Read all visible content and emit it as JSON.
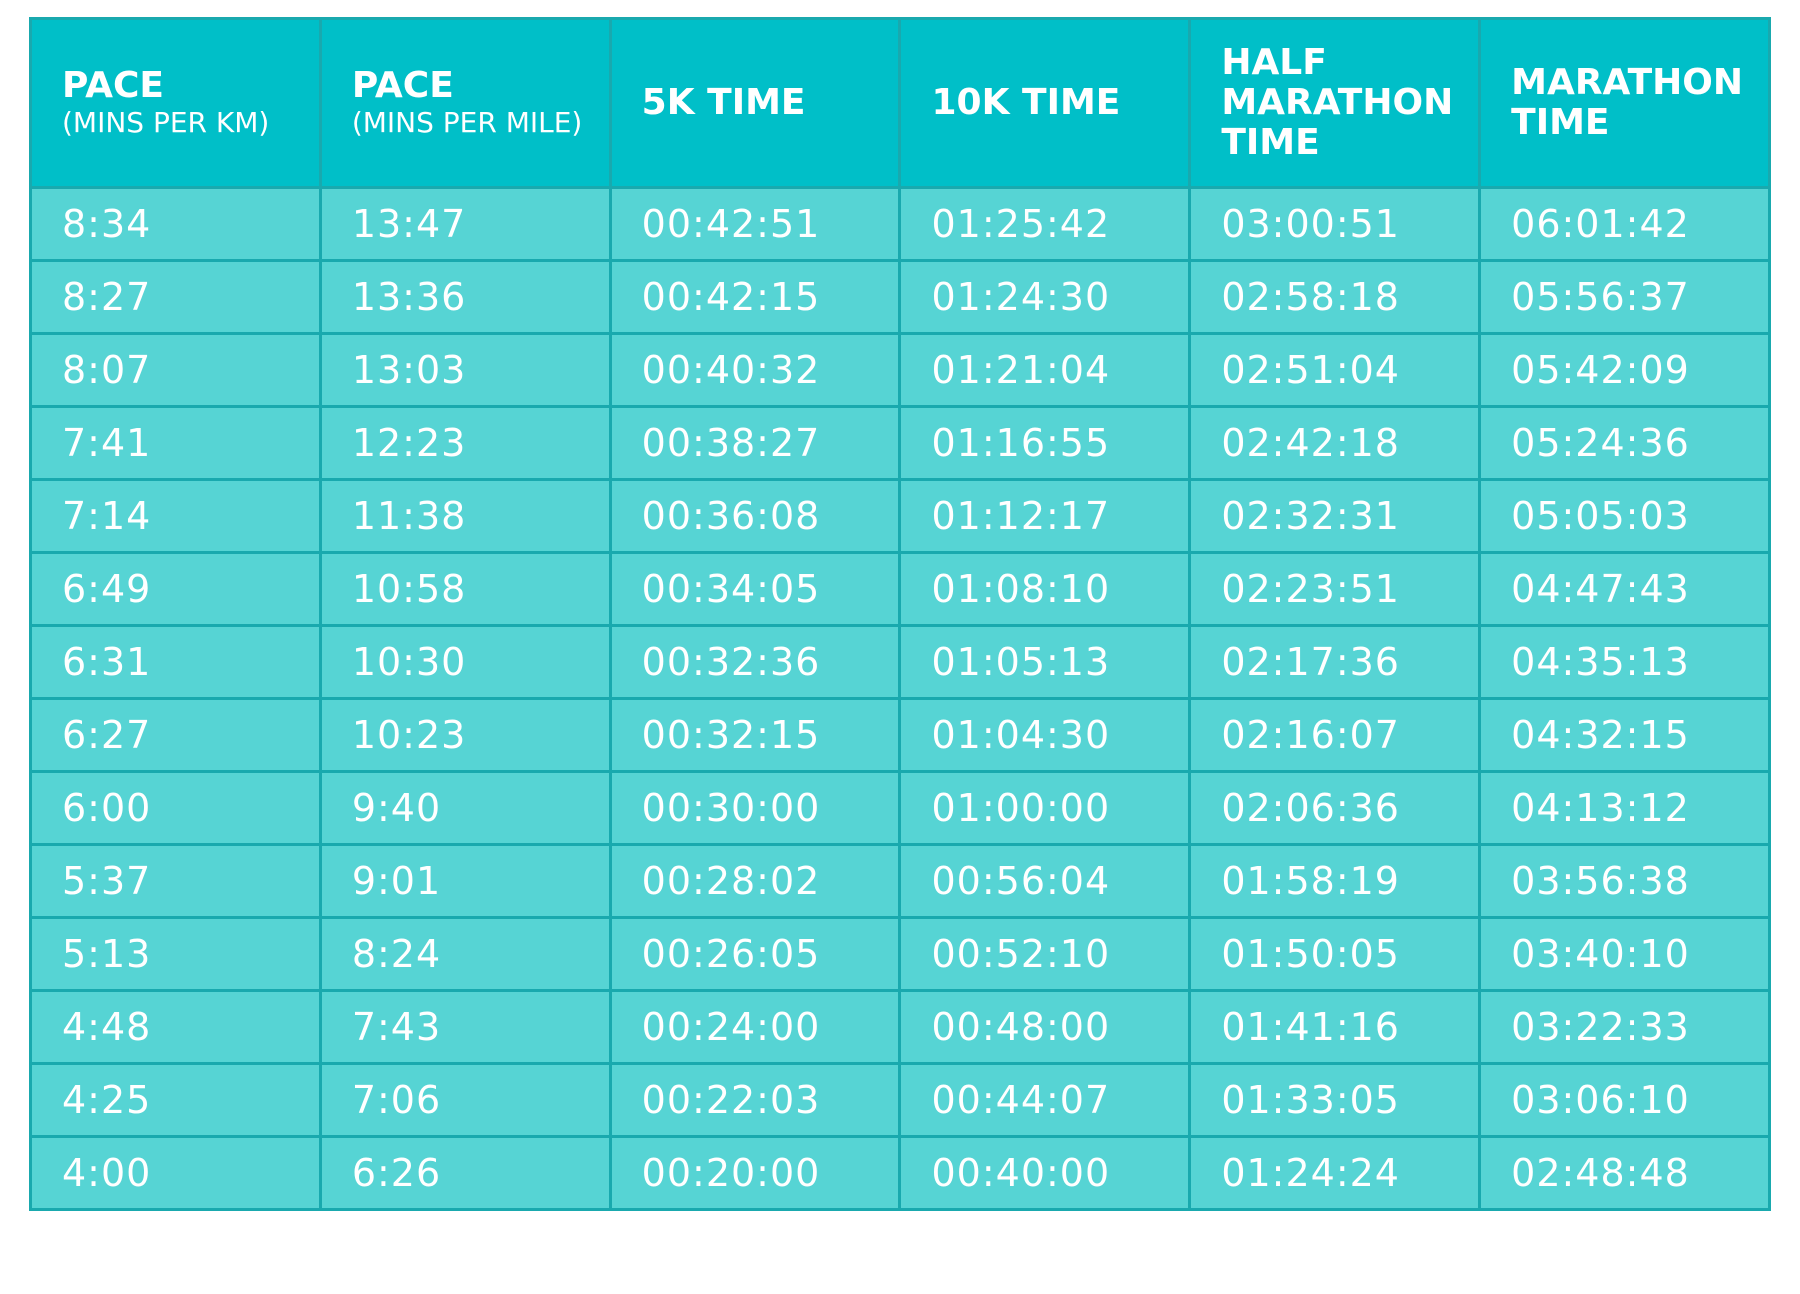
{
  "table": {
    "header": [
      {
        "lines": [
          "PACE"
        ],
        "subtitle": "(MINS PER KM)"
      },
      {
        "lines": [
          "PACE"
        ],
        "subtitle": "(MINS PER MILE)"
      },
      {
        "lines": [
          "5K TIME"
        ]
      },
      {
        "lines": [
          "10K TIME"
        ]
      },
      {
        "lines": [
          "HALF",
          "MARATHON",
          "TIME"
        ]
      },
      {
        "lines": [
          "MARATHON",
          "TIME"
        ]
      }
    ],
    "rows": [
      [
        "8:34",
        "13:47",
        "00:42:51",
        "01:25:42",
        "03:00:51",
        "06:01:42"
      ],
      [
        "8:27",
        "13:36",
        "00:42:15",
        "01:24:30",
        "02:58:18",
        "05:56:37"
      ],
      [
        "8:07",
        "13:03",
        "00:40:32",
        "01:21:04",
        "02:51:04",
        "05:42:09"
      ],
      [
        "7:41",
        "12:23",
        "00:38:27",
        "01:16:55",
        "02:42:18",
        "05:24:36"
      ],
      [
        "7:14",
        "11:38",
        "00:36:08",
        "01:12:17",
        "02:32:31",
        "05:05:03"
      ],
      [
        "6:49",
        "10:58",
        "00:34:05",
        "01:08:10",
        "02:23:51",
        "04:47:43"
      ],
      [
        "6:31",
        "10:30",
        "00:32:36",
        "01:05:13",
        "02:17:36",
        "04:35:13"
      ],
      [
        "6:27",
        "10:23",
        "00:32:15",
        "01:04:30",
        "02:16:07",
        "04:32:15"
      ],
      [
        "6:00",
        "9:40",
        "00:30:00",
        "01:00:00",
        "02:06:36",
        "04:13:12"
      ],
      [
        "5:37",
        "9:01",
        "00:28:02",
        "00:56:04",
        "01:58:19",
        "03:56:38"
      ],
      [
        "5:13",
        "8:24",
        "00:26:05",
        "00:52:10",
        "01:50:05",
        "03:40:10"
      ],
      [
        "4:48",
        "7:43",
        "00:24:00",
        "00:48:00",
        "01:41:16",
        "03:22:33"
      ],
      [
        "4:25",
        "7:06",
        "00:22:03",
        "00:44:07",
        "01:33:05",
        "03:06:10"
      ],
      [
        "4:00",
        "6:26",
        "00:20:00",
        "00:40:00",
        "01:24:24",
        "02:48:48"
      ]
    ]
  }
}
